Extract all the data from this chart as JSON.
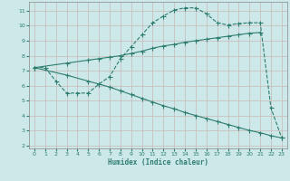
{
  "xlabel": "Humidex (Indice chaleur)",
  "bg_color": "#cce8e8",
  "line_color": "#2e7d6e",
  "grid_minor_color": "#b8d8d8",
  "grid_major_color": "#c8b8b8",
  "xlim": [
    -0.5,
    23.5
  ],
  "ylim": [
    1.8,
    11.6
  ],
  "xticks": [
    0,
    1,
    2,
    3,
    4,
    5,
    6,
    7,
    8,
    9,
    10,
    11,
    12,
    13,
    14,
    15,
    16,
    17,
    18,
    19,
    20,
    21,
    22,
    23
  ],
  "yticks": [
    2,
    3,
    4,
    5,
    6,
    7,
    8,
    9,
    10,
    11
  ],
  "curve1_x": [
    0,
    1,
    2,
    3,
    4,
    5,
    6,
    7,
    8,
    9,
    10,
    11,
    12,
    13,
    14,
    15,
    16,
    17,
    18,
    19,
    20,
    21,
    22,
    23
  ],
  "curve1_y": [
    7.2,
    7.2,
    6.3,
    5.5,
    5.5,
    5.5,
    6.1,
    6.6,
    7.8,
    8.6,
    9.4,
    10.2,
    10.65,
    11.05,
    11.2,
    11.2,
    10.8,
    10.2,
    10.05,
    10.15,
    10.2,
    10.2,
    4.5,
    2.5
  ],
  "curve2_x": [
    0,
    3,
    5,
    6,
    7,
    8,
    9,
    10,
    11,
    12,
    13,
    14,
    15,
    16,
    17,
    18,
    19,
    20,
    21
  ],
  "curve2_y": [
    7.2,
    7.5,
    7.7,
    7.8,
    7.9,
    8.0,
    8.15,
    8.3,
    8.5,
    8.65,
    8.75,
    8.9,
    9.0,
    9.1,
    9.2,
    9.3,
    9.4,
    9.5,
    9.55
  ],
  "curve3_x": [
    0,
    3,
    5,
    6,
    7,
    8,
    9,
    10,
    11,
    12,
    13,
    14,
    15,
    16,
    17,
    18,
    19,
    20,
    21,
    22,
    23
  ],
  "curve3_y": [
    7.2,
    6.7,
    6.3,
    6.1,
    5.9,
    5.65,
    5.4,
    5.15,
    4.9,
    4.65,
    4.45,
    4.2,
    4.0,
    3.8,
    3.6,
    3.4,
    3.2,
    3.0,
    2.85,
    2.65,
    2.5
  ]
}
